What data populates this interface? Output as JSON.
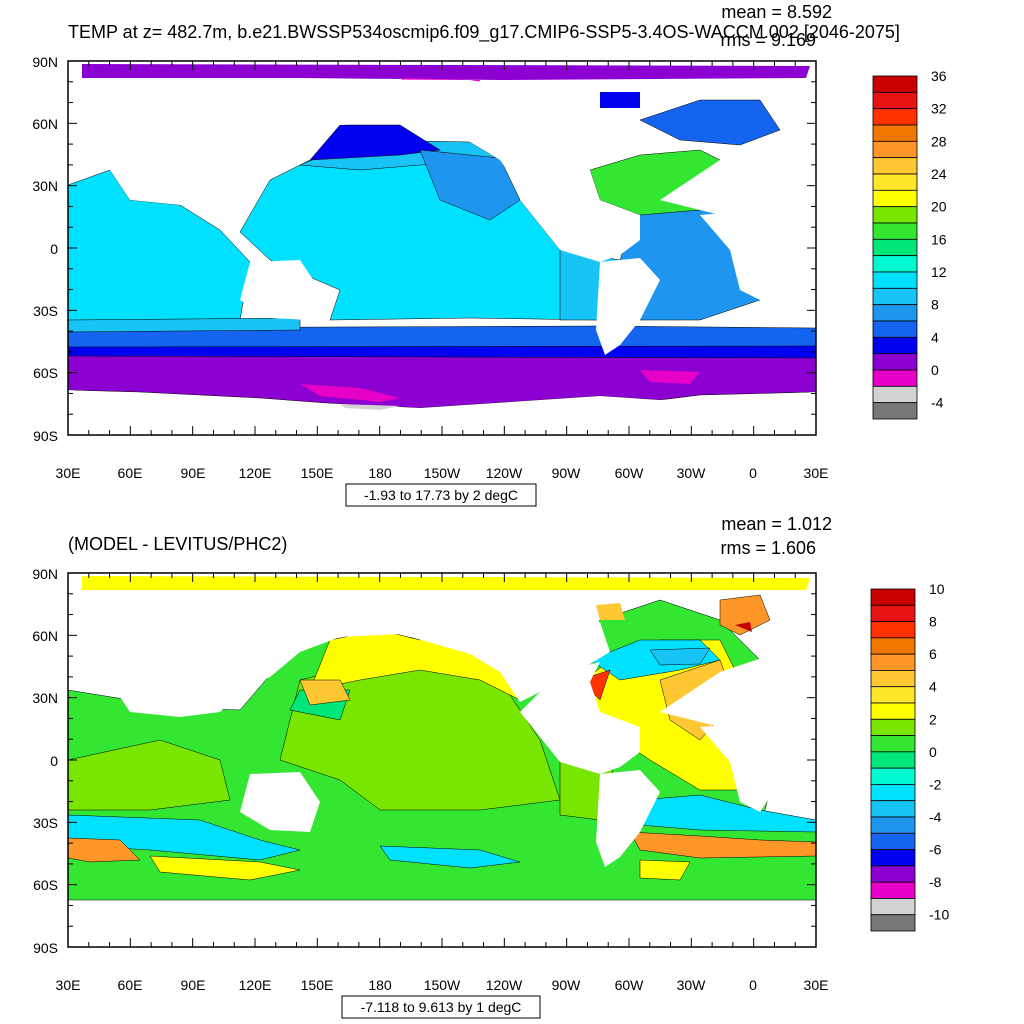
{
  "panels": [
    {
      "title": "TEMP at z= 482.7m, b.e21.BWSSP534oscmip6.f09_g17.CMIP6-SSP5-3.4OS-WACCM.002 [2046-2075]",
      "mean_text": "mean = 8.592",
      "rms_text": "rms = 9.169",
      "range_text": "-1.93 to 17.73 by 2 degC",
      "lat_labels": [
        "90N",
        "60N",
        "30N",
        "0",
        "30S",
        "60S",
        "90S"
      ],
      "lon_labels": [
        "30E",
        "60E",
        "90E",
        "120E",
        "150E",
        "180",
        "150W",
        "120W",
        "90W",
        "60W",
        "30W",
        "0",
        "30E"
      ],
      "colorbar": {
        "labels": [
          "36",
          "32",
          "28",
          "24",
          "20",
          "16",
          "12",
          "8",
          "4",
          "0",
          "-4"
        ],
        "colors": [
          "#c80000",
          "#e61414",
          "#ff3200",
          "#f07800",
          "#ff9628",
          "#ffc832",
          "#ffe628",
          "#ffff00",
          "#78e600",
          "#32e632",
          "#00e678",
          "#00fad2",
          "#00e1ff",
          "#18c3f5",
          "#1e96f0",
          "#1464f0",
          "#0000f0",
          "#8c00d2",
          "#e600c8",
          "#d2d2d2",
          "#787878"
        ]
      }
    },
    {
      "title": "(MODEL - LEVITUS/PHC2)",
      "mean_text": "mean = 1.012",
      "rms_text": "rms = 1.606",
      "range_text": "-7.118 to 9.613 by 1 degC",
      "lat_labels": [
        "90N",
        "60N",
        "30N",
        "0",
        "30S",
        "60S",
        "90S"
      ],
      "lon_labels": [
        "30E",
        "60E",
        "90E",
        "120E",
        "150E",
        "180",
        "150W",
        "120W",
        "90W",
        "60W",
        "30W",
        "0",
        "30E"
      ],
      "colorbar": {
        "labels": [
          "10",
          "8",
          "6",
          "4",
          "2",
          "0",
          "-2",
          "-4",
          "-6",
          "-8",
          "-10"
        ],
        "colors": [
          "#c80000",
          "#e61414",
          "#ff3200",
          "#f07800",
          "#ff9628",
          "#ffc832",
          "#ffe628",
          "#ffff00",
          "#78e600",
          "#32e632",
          "#00e678",
          "#00fad2",
          "#00e1ff",
          "#18c3f5",
          "#1e96f0",
          "#1464f0",
          "#0000f0",
          "#8c00d2",
          "#e600c8",
          "#d2d2d2",
          "#787878"
        ]
      }
    }
  ]
}
